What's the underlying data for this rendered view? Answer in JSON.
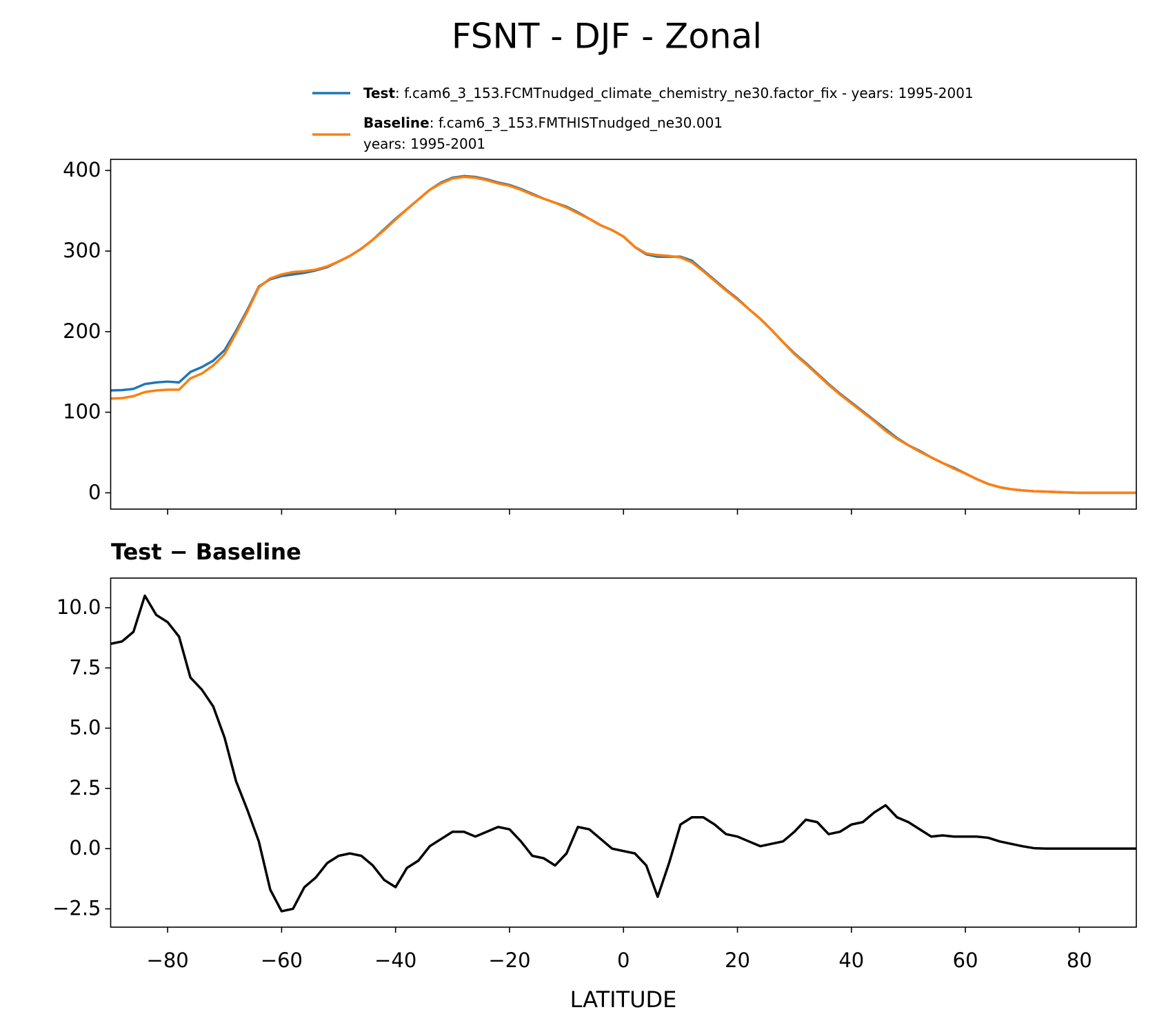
{
  "chart_data": [
    {
      "type": "line",
      "title": "FSNT - DJF - Zonal",
      "x": [
        -90,
        -88,
        -86,
        -84,
        -82,
        -80,
        -78,
        -76,
        -74,
        -72,
        -70,
        -68,
        -66,
        -64,
        -62,
        -60,
        -58,
        -56,
        -54,
        -52,
        -50,
        -48,
        -46,
        -44,
        -42,
        -40,
        -38,
        -36,
        -34,
        -32,
        -30,
        -28,
        -26,
        -24,
        -22,
        -20,
        -18,
        -16,
        -14,
        -12,
        -10,
        -8,
        -6,
        -4,
        -2,
        0,
        2,
        4,
        6,
        8,
        10,
        12,
        14,
        16,
        18,
        20,
        22,
        24,
        26,
        28,
        30,
        32,
        34,
        36,
        38,
        40,
        42,
        44,
        46,
        48,
        50,
        52,
        54,
        56,
        58,
        60,
        62,
        64,
        66,
        68,
        70,
        72,
        74,
        76,
        78,
        80,
        82,
        84,
        86,
        88,
        90
      ],
      "series": [
        {
          "name": "Test",
          "description": [
            ": f.cam6_3_153.FCMTnudged_climate_chemistry_ne30.factor_fix - years: 1995-2001"
          ],
          "color": "#1f77b4",
          "values": [
            127,
            127.5,
            129,
            135,
            137,
            138,
            137,
            150,
            156,
            164,
            177,
            201,
            227,
            256,
            265,
            269,
            271,
            273,
            276,
            280,
            287,
            294,
            303,
            314,
            327,
            340,
            352,
            364,
            376,
            385,
            391,
            393,
            392,
            389,
            385,
            382,
            377,
            371,
            365,
            360,
            355,
            348,
            340,
            332,
            326,
            318,
            305,
            296,
            293,
            293,
            293,
            288,
            276,
            264,
            252,
            241,
            228,
            216,
            202,
            187,
            173,
            161,
            148,
            135,
            123,
            112,
            101,
            90,
            79,
            68,
            59,
            52,
            44,
            37,
            31,
            24,
            17,
            11,
            7,
            4.5,
            3,
            2,
            1.5,
            1,
            0.5,
            0,
            0,
            0,
            0,
            0,
            0
          ]
        },
        {
          "name": "Baseline",
          "description": [
            ": f.cam6_3_153.FMTHISTnudged_ne30.001",
            "years: 1995-2001"
          ],
          "color": "#ff7f0e",
          "values": [
            117,
            117.5,
            120,
            125,
            127,
            128,
            128,
            142,
            148,
            158,
            172,
            198,
            225,
            255,
            266,
            271,
            274,
            275,
            277,
            281,
            287,
            294,
            303,
            314,
            326,
            339,
            352,
            364,
            376,
            384,
            390,
            392,
            391,
            388,
            384,
            381,
            376,
            370,
            365,
            360,
            354,
            347,
            340,
            332,
            326,
            318,
            305,
            297,
            295,
            294,
            292,
            286,
            275,
            263,
            251,
            240,
            228,
            216,
            202,
            187,
            172,
            160,
            147,
            134,
            122,
            111,
            100,
            89,
            77,
            67,
            59,
            51,
            44,
            37,
            30,
            24,
            17,
            11,
            7,
            4.5,
            3,
            2,
            1.5,
            1,
            0.5,
            0,
            0,
            0,
            0,
            0,
            0
          ]
        }
      ],
      "xlim": [
        -90,
        90
      ],
      "ylim": [
        -20.2,
        413.8
      ],
      "yticks": [
        0,
        100,
        200,
        300,
        400
      ]
    },
    {
      "type": "line",
      "title": "Test − Baseline",
      "xlabel": "LATITUDE",
      "x": [
        -90,
        -88,
        -86,
        -84,
        -82,
        -80,
        -78,
        -76,
        -74,
        -72,
        -70,
        -68,
        -66,
        -64,
        -62,
        -60,
        -58,
        -56,
        -54,
        -52,
        -50,
        -48,
        -46,
        -44,
        -42,
        -40,
        -38,
        -36,
        -34,
        -32,
        -30,
        -28,
        -26,
        -24,
        -22,
        -20,
        -18,
        -16,
        -14,
        -12,
        -10,
        -8,
        -6,
        -4,
        -2,
        0,
        2,
        4,
        6,
        8,
        10,
        12,
        14,
        16,
        18,
        20,
        22,
        24,
        26,
        28,
        30,
        32,
        34,
        36,
        38,
        40,
        42,
        44,
        46,
        48,
        50,
        52,
        54,
        56,
        58,
        60,
        62,
        64,
        66,
        68,
        70,
        72,
        74,
        76,
        78,
        80,
        82,
        84,
        86,
        88,
        90
      ],
      "series": [
        {
          "color": "#000000",
          "values": [
            8.5,
            8.6,
            9.0,
            10.5,
            9.7,
            9.4,
            8.8,
            7.1,
            6.6,
            5.9,
            4.6,
            2.8,
            1.6,
            0.3,
            -1.7,
            -2.6,
            -2.5,
            -1.6,
            -1.2,
            -0.6,
            -0.3,
            -0.2,
            -0.3,
            -0.7,
            -1.3,
            -1.6,
            -0.8,
            -0.5,
            0.1,
            0.4,
            0.7,
            0.7,
            0.5,
            0.7,
            0.9,
            0.8,
            0.3,
            -0.3,
            -0.4,
            -0.7,
            -0.2,
            0.9,
            0.8,
            0.4,
            0.0,
            -0.1,
            -0.2,
            -0.7,
            -2.0,
            -0.6,
            1.0,
            1.3,
            1.3,
            1.0,
            0.6,
            0.5,
            0.3,
            0.1,
            0.2,
            0.3,
            0.7,
            1.2,
            1.1,
            0.6,
            0.7,
            1.0,
            1.1,
            1.5,
            1.8,
            1.3,
            1.1,
            0.8,
            0.5,
            0.55,
            0.5,
            0.5,
            0.5,
            0.45,
            0.3,
            0.2,
            0.1,
            0.02,
            0,
            0,
            0,
            0,
            0,
            0,
            0,
            0,
            0
          ]
        }
      ],
      "xlim": [
        -90,
        90
      ],
      "ylim": [
        -3.26,
        11.23
      ],
      "xticks": [
        {
          "value": -80,
          "label": "−80"
        },
        {
          "value": -60,
          "label": "−60"
        },
        {
          "value": -40,
          "label": "−40"
        },
        {
          "value": -20,
          "label": "−20"
        },
        0,
        20,
        40,
        60,
        80
      ],
      "yticks": [
        {
          "value": -2.5,
          "label": "−2.5"
        },
        {
          "value": 0,
          "label": "0.0"
        },
        {
          "value": 2.5,
          "label": "2.5"
        },
        {
          "value": 5,
          "label": "5.0"
        },
        {
          "value": 7.5,
          "label": "7.5"
        },
        {
          "value": 10,
          "label": "10.0"
        }
      ]
    }
  ]
}
